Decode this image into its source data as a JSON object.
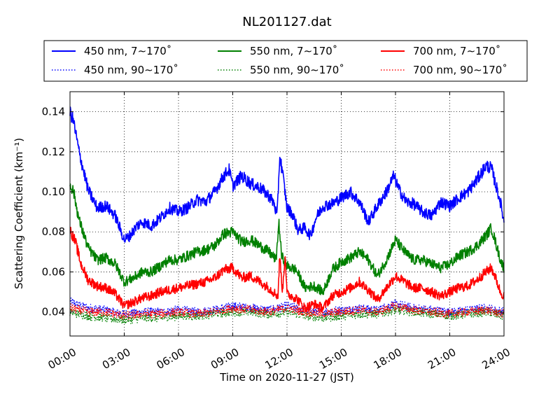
{
  "chart_data": {
    "type": "line",
    "title": "NL201127.dat",
    "xlabel": "Time on 2020-11-27 (JST)",
    "ylabel": "Scattering Coefficient (km⁻¹)",
    "xlim": [
      0,
      24
    ],
    "ylim": [
      0.028,
      0.15
    ],
    "x_ticks": [
      0,
      3,
      6,
      9,
      12,
      15,
      18,
      21,
      24
    ],
    "x_tick_labels": [
      "00:00",
      "03:00",
      "06:00",
      "09:00",
      "12:00",
      "15:00",
      "18:00",
      "21:00",
      "24:00"
    ],
    "y_ticks": [
      0.04,
      0.06,
      0.08,
      0.1,
      0.12,
      0.14
    ],
    "y_tick_labels": [
      "0.04",
      "0.06",
      "0.08",
      "0.10",
      "0.12",
      "0.14"
    ],
    "grid": true,
    "legend_position": "top",
    "series": [
      {
        "name": "450 nm, 7∼170˚",
        "color": "#0000ff",
        "style": "solid",
        "x": [
          0,
          0.2,
          0.5,
          1,
          1.5,
          2,
          2.5,
          3,
          3.3,
          3.7,
          4,
          4.5,
          5,
          5.5,
          6,
          6.5,
          7,
          7.5,
          8,
          8.5,
          8.8,
          9,
          9.5,
          10,
          10.5,
          11,
          11.3,
          11.45,
          11.6,
          11.75,
          12,
          12.3,
          12.6,
          13,
          13.3,
          13.6,
          14,
          14.5,
          15,
          15.5,
          16,
          16.5,
          17,
          17.5,
          17.9,
          18.2,
          18.6,
          19,
          19.5,
          20,
          20.5,
          21,
          21.5,
          22,
          22.5,
          23,
          23.3,
          23.5,
          23.8,
          24
        ],
        "y": [
          0.14,
          0.135,
          0.12,
          0.101,
          0.092,
          0.093,
          0.088,
          0.076,
          0.078,
          0.083,
          0.085,
          0.083,
          0.087,
          0.092,
          0.09,
          0.092,
          0.096,
          0.095,
          0.1,
          0.108,
          0.111,
          0.103,
          0.108,
          0.104,
          0.102,
          0.098,
          0.094,
          0.087,
          0.118,
          0.11,
          0.092,
          0.089,
          0.081,
          0.082,
          0.078,
          0.087,
          0.093,
          0.094,
          0.097,
          0.1,
          0.095,
          0.085,
          0.093,
          0.1,
          0.108,
          0.101,
          0.095,
          0.094,
          0.09,
          0.088,
          0.095,
          0.093,
          0.097,
          0.1,
          0.106,
          0.113,
          0.112,
          0.105,
          0.095,
          0.085
        ]
      },
      {
        "name": "450 nm, 90∼170˚",
        "color": "#0000ff",
        "style": "dotted",
        "x": [
          0,
          1,
          2,
          3,
          4,
          5,
          6,
          7,
          8,
          9,
          10,
          11,
          12,
          13,
          14,
          15,
          16,
          17,
          18,
          19,
          20,
          21,
          22,
          23,
          24
        ],
        "y": [
          0.045,
          0.042,
          0.041,
          0.039,
          0.04,
          0.04,
          0.041,
          0.04,
          0.041,
          0.043,
          0.042,
          0.041,
          0.043,
          0.041,
          0.04,
          0.041,
          0.042,
          0.041,
          0.044,
          0.042,
          0.041,
          0.04,
          0.041,
          0.042,
          0.04
        ]
      },
      {
        "name": "550 nm, 7∼170˚",
        "color": "#008000",
        "style": "solid",
        "x": [
          0,
          0.2,
          0.5,
          1,
          1.5,
          2,
          2.5,
          3,
          3.5,
          4,
          4.5,
          5,
          5.5,
          6,
          6.5,
          7,
          7.5,
          8,
          8.5,
          9,
          9.5,
          10,
          10.5,
          11,
          11.4,
          11.55,
          11.7,
          12,
          12.5,
          13,
          13.5,
          14,
          14.5,
          15,
          15.5,
          16,
          16.5,
          17,
          17.5,
          18,
          18.5,
          19,
          19.5,
          20,
          20.5,
          21,
          21.5,
          22,
          22.5,
          23,
          23.3,
          23.5,
          23.8,
          24
        ],
        "y": [
          0.104,
          0.1,
          0.086,
          0.072,
          0.066,
          0.067,
          0.064,
          0.055,
          0.057,
          0.06,
          0.06,
          0.063,
          0.066,
          0.066,
          0.068,
          0.07,
          0.071,
          0.073,
          0.079,
          0.08,
          0.075,
          0.076,
          0.073,
          0.07,
          0.066,
          0.085,
          0.068,
          0.063,
          0.061,
          0.052,
          0.053,
          0.05,
          0.061,
          0.065,
          0.067,
          0.07,
          0.066,
          0.058,
          0.066,
          0.076,
          0.07,
          0.066,
          0.066,
          0.064,
          0.062,
          0.064,
          0.068,
          0.07,
          0.073,
          0.078,
          0.082,
          0.076,
          0.066,
          0.062
        ]
      },
      {
        "name": "550 nm, 90∼170˚",
        "color": "#008000",
        "style": "dotted",
        "x": [
          0,
          1,
          2,
          3,
          4,
          5,
          6,
          7,
          8,
          9,
          10,
          11,
          12,
          13,
          14,
          15,
          16,
          17,
          18,
          19,
          20,
          21,
          22,
          23,
          24
        ],
        "y": [
          0.04,
          0.038,
          0.037,
          0.036,
          0.037,
          0.037,
          0.038,
          0.038,
          0.039,
          0.04,
          0.04,
          0.039,
          0.04,
          0.038,
          0.037,
          0.038,
          0.039,
          0.039,
          0.041,
          0.04,
          0.039,
          0.038,
          0.039,
          0.04,
          0.038
        ]
      },
      {
        "name": "700 nm, 7∼170˚",
        "color": "#ff0000",
        "style": "solid",
        "x": [
          0,
          0.3,
          0.6,
          1,
          1.5,
          2,
          2.5,
          3,
          3.5,
          4,
          4.5,
          5,
          5.5,
          6,
          6.5,
          7,
          7.5,
          8,
          8.5,
          9,
          9.5,
          10,
          10.5,
          11,
          11.5,
          11.6,
          11.75,
          11.9,
          12,
          12.5,
          13,
          13.5,
          14,
          14.5,
          15,
          15.5,
          16,
          16.5,
          17,
          17.5,
          18,
          18.5,
          19,
          19.5,
          20,
          20.5,
          21,
          21.5,
          22,
          22.5,
          23,
          23.3,
          23.5,
          23.8,
          24
        ],
        "y": [
          0.081,
          0.075,
          0.064,
          0.056,
          0.053,
          0.052,
          0.049,
          0.043,
          0.045,
          0.047,
          0.048,
          0.05,
          0.051,
          0.052,
          0.053,
          0.054,
          0.055,
          0.057,
          0.061,
          0.062,
          0.057,
          0.058,
          0.055,
          0.052,
          0.048,
          0.068,
          0.05,
          0.069,
          0.049,
          0.047,
          0.042,
          0.044,
          0.042,
          0.048,
          0.05,
          0.052,
          0.055,
          0.051,
          0.046,
          0.052,
          0.058,
          0.055,
          0.052,
          0.052,
          0.05,
          0.048,
          0.05,
          0.052,
          0.053,
          0.056,
          0.06,
          0.062,
          0.058,
          0.05,
          0.048
        ]
      },
      {
        "name": "700 nm, 90∼170˚",
        "color": "#ff0000",
        "style": "dotted",
        "x": [
          0,
          1,
          2,
          3,
          4,
          5,
          6,
          7,
          8,
          9,
          10,
          11,
          12,
          13,
          14,
          15,
          16,
          17,
          18,
          19,
          20,
          21,
          22,
          23,
          24
        ],
        "y": [
          0.042,
          0.04,
          0.04,
          0.038,
          0.039,
          0.039,
          0.04,
          0.039,
          0.04,
          0.042,
          0.041,
          0.04,
          0.042,
          0.04,
          0.039,
          0.04,
          0.041,
          0.04,
          0.043,
          0.041,
          0.04,
          0.039,
          0.04,
          0.041,
          0.039
        ]
      }
    ]
  }
}
